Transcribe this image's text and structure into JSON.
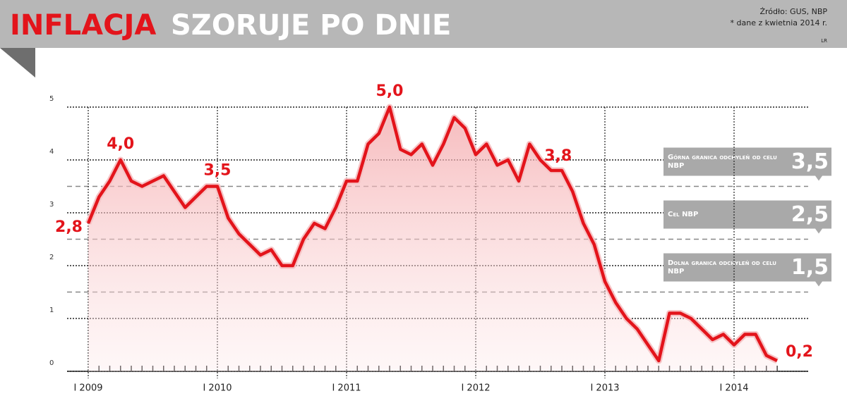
{
  "chart_data": {
    "type": "line",
    "title": "INFLACJA",
    "subtitle": "SZORUJE PO DNIE",
    "source": "Źródło: GUS, NBP",
    "note": "* dane z kwietnia 2014 r.",
    "author": "LR",
    "categories": [
      "I 2009",
      null,
      null,
      null,
      null,
      null,
      null,
      null,
      null,
      null,
      null,
      null,
      "I 2010",
      null,
      null,
      null,
      null,
      null,
      null,
      null,
      null,
      null,
      null,
      null,
      "I 2011",
      null,
      null,
      null,
      null,
      null,
      null,
      null,
      null,
      null,
      null,
      null,
      "I 2012",
      null,
      null,
      null,
      null,
      null,
      null,
      null,
      null,
      null,
      null,
      null,
      "I 2013",
      null,
      null,
      null,
      null,
      null,
      null,
      null,
      null,
      null,
      null,
      null,
      "I 2014",
      null,
      null,
      null,
      null
    ],
    "values": [
      2.8,
      3.3,
      3.6,
      4.0,
      3.6,
      3.5,
      3.6,
      3.7,
      3.4,
      3.1,
      3.3,
      3.5,
      3.5,
      2.9,
      2.6,
      2.4,
      2.2,
      2.3,
      2.0,
      2.0,
      2.5,
      2.8,
      2.7,
      3.1,
      3.6,
      3.6,
      4.3,
      4.5,
      5.0,
      4.2,
      4.1,
      4.3,
      3.9,
      4.3,
      4.8,
      4.6,
      4.1,
      4.3,
      3.9,
      4.0,
      3.6,
      4.3,
      4.0,
      3.8,
      3.8,
      3.4,
      2.8,
      2.4,
      1.7,
      1.3,
      1.0,
      0.8,
      0.5,
      0.2,
      1.1,
      1.1,
      1.0,
      0.8,
      0.6,
      0.7,
      0.5,
      0.7,
      0.7,
      0.3,
      0.2
    ],
    "value_labels": [
      "2,8",
      null,
      null,
      "4,0",
      null,
      null,
      null,
      null,
      null,
      null,
      null,
      null,
      "3,5",
      null,
      null,
      null,
      null,
      null,
      null,
      null,
      null,
      null,
      null,
      null,
      null,
      null,
      null,
      null,
      "5,0",
      null,
      null,
      null,
      null,
      null,
      null,
      null,
      null,
      null,
      null,
      null,
      null,
      null,
      null,
      "3,8",
      null,
      null,
      null,
      null,
      null,
      null,
      null,
      null,
      null,
      null,
      null,
      null,
      null,
      null,
      null,
      null,
      null,
      null,
      null,
      null,
      "0,2"
    ],
    "color": "#e3141b",
    "ylim": [
      0,
      5
    ],
    "yticks": [
      0,
      1,
      2,
      3,
      4,
      5
    ],
    "grid": true,
    "reference_lines": [
      {
        "value": 3.5,
        "label": "Górna granica odchyleń od celu NBP",
        "value_label": "3,5"
      },
      {
        "value": 2.5,
        "label": "Cel NBP",
        "value_label": "2,5"
      },
      {
        "value": 1.5,
        "label": "Dolna granica odchyleń od celu NBP",
        "value_label": "1,5"
      }
    ]
  }
}
